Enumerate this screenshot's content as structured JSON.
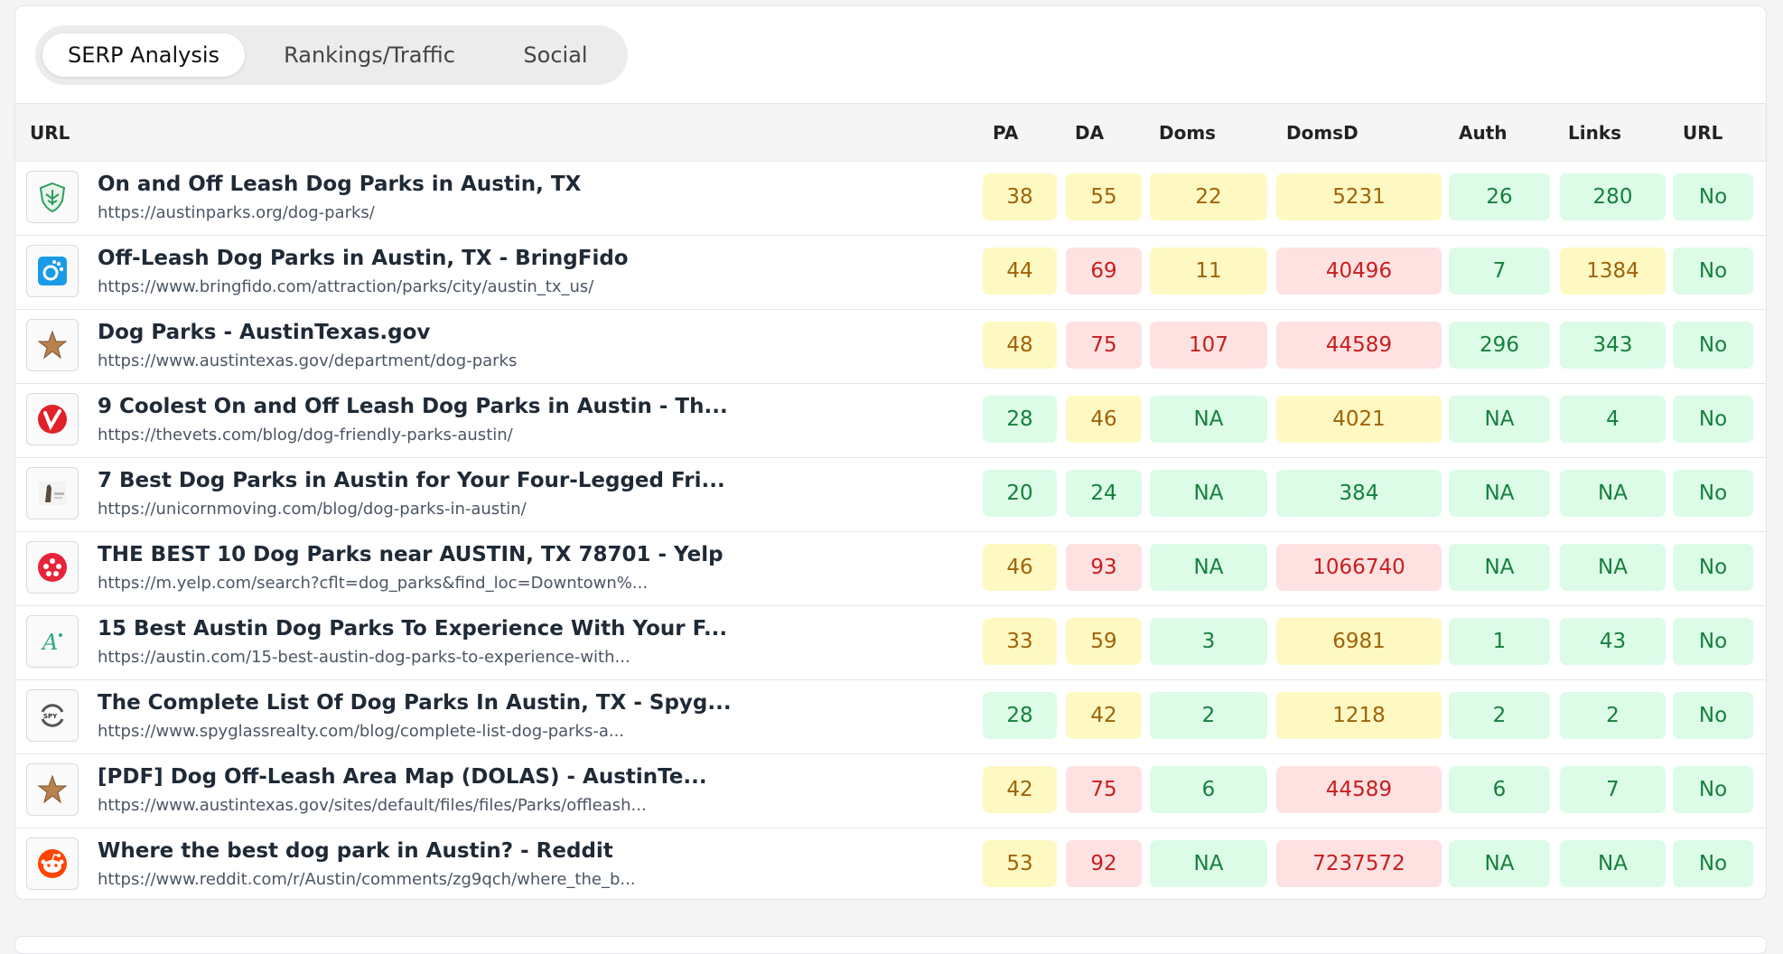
{
  "tabs": [
    {
      "label": "SERP Analysis",
      "active": true
    },
    {
      "label": "Rankings/Traffic",
      "active": false
    },
    {
      "label": "Social",
      "active": false
    }
  ],
  "columns": {
    "url": "URL",
    "pa": "PA",
    "da": "DA",
    "doms": "Doms",
    "domsd": "DomsD",
    "auth": "Auth",
    "links": "Links",
    "url2": "URL"
  },
  "colors": {
    "green_bg": "#dcfce7",
    "green_fg": "#15803d",
    "yellow_bg": "#fef9c3",
    "yellow_fg": "#a16207",
    "red_bg": "#fee2e2",
    "red_fg": "#c81e1e"
  },
  "rows": [
    {
      "icon": "austinparks-logo-icon",
      "title": "On and Off Leash Dog Parks in Austin, TX",
      "url": "https://austinparks.org/dog-parks/",
      "pa": {
        "v": "38",
        "c": "yellow"
      },
      "da": {
        "v": "55",
        "c": "yellow"
      },
      "doms": {
        "v": "22",
        "c": "yellow"
      },
      "domsd": {
        "v": "5231",
        "c": "yellow"
      },
      "auth": {
        "v": "26",
        "c": "green"
      },
      "links": {
        "v": "280",
        "c": "green"
      },
      "url2": {
        "v": "No",
        "c": "green"
      }
    },
    {
      "icon": "bringfido-logo-icon",
      "title": "Off-Leash Dog Parks in Austin, TX - BringFido",
      "url": "https://www.bringfido.com/attraction/parks/city/austin_tx_us/",
      "pa": {
        "v": "44",
        "c": "yellow"
      },
      "da": {
        "v": "69",
        "c": "red"
      },
      "doms": {
        "v": "11",
        "c": "yellow"
      },
      "domsd": {
        "v": "40496",
        "c": "red"
      },
      "auth": {
        "v": "7",
        "c": "green"
      },
      "links": {
        "v": "1384",
        "c": "yellow"
      },
      "url2": {
        "v": "No",
        "c": "green"
      }
    },
    {
      "icon": "austintexas-star-icon",
      "title": "Dog Parks - AustinTexas.gov",
      "url": "https://www.austintexas.gov/department/dog-parks",
      "pa": {
        "v": "48",
        "c": "yellow"
      },
      "da": {
        "v": "75",
        "c": "red"
      },
      "doms": {
        "v": "107",
        "c": "red"
      },
      "domsd": {
        "v": "44589",
        "c": "red"
      },
      "auth": {
        "v": "296",
        "c": "green"
      },
      "links": {
        "v": "343",
        "c": "green"
      },
      "url2": {
        "v": "No",
        "c": "green"
      }
    },
    {
      "icon": "thevets-logo-icon",
      "title": "9 Coolest On and Off Leash Dog Parks in Austin - Th...",
      "url": "https://thevets.com/blog/dog-friendly-parks-austin/",
      "pa": {
        "v": "28",
        "c": "green"
      },
      "da": {
        "v": "46",
        "c": "yellow"
      },
      "doms": {
        "v": "NA",
        "c": "green"
      },
      "domsd": {
        "v": "4021",
        "c": "yellow"
      },
      "auth": {
        "v": "NA",
        "c": "green"
      },
      "links": {
        "v": "4",
        "c": "green"
      },
      "url2": {
        "v": "No",
        "c": "green"
      }
    },
    {
      "icon": "unicornmoving-logo-icon",
      "title": "7 Best Dog Parks in Austin for Your Four-Legged Fri...",
      "url": "https://unicornmoving.com/blog/dog-parks-in-austin/",
      "pa": {
        "v": "20",
        "c": "green"
      },
      "da": {
        "v": "24",
        "c": "green"
      },
      "doms": {
        "v": "NA",
        "c": "green"
      },
      "domsd": {
        "v": "384",
        "c": "green"
      },
      "auth": {
        "v": "NA",
        "c": "green"
      },
      "links": {
        "v": "NA",
        "c": "green"
      },
      "url2": {
        "v": "No",
        "c": "green"
      }
    },
    {
      "icon": "yelp-logo-icon",
      "title": "THE BEST 10 Dog Parks near AUSTIN, TX 78701 - Yelp",
      "url": "https://m.yelp.com/search?cflt=dog_parks&find_loc=Downtown%...",
      "pa": {
        "v": "46",
        "c": "yellow"
      },
      "da": {
        "v": "93",
        "c": "red"
      },
      "doms": {
        "v": "NA",
        "c": "green"
      },
      "domsd": {
        "v": "1066740",
        "c": "red"
      },
      "auth": {
        "v": "NA",
        "c": "green"
      },
      "links": {
        "v": "NA",
        "c": "green"
      },
      "url2": {
        "v": "No",
        "c": "green"
      }
    },
    {
      "icon": "austin-com-logo-icon",
      "title": "15 Best Austin Dog Parks To Experience With Your F...",
      "url": "https://austin.com/15-best-austin-dog-parks-to-experience-with...",
      "pa": {
        "v": "33",
        "c": "yellow"
      },
      "da": {
        "v": "59",
        "c": "yellow"
      },
      "doms": {
        "v": "3",
        "c": "green"
      },
      "domsd": {
        "v": "6981",
        "c": "yellow"
      },
      "auth": {
        "v": "1",
        "c": "green"
      },
      "links": {
        "v": "43",
        "c": "green"
      },
      "url2": {
        "v": "No",
        "c": "green"
      }
    },
    {
      "icon": "spyglass-logo-icon",
      "title": "The Complete List Of Dog Parks In Austin, TX - Spyg...",
      "url": "https://www.spyglassrealty.com/blog/complete-list-dog-parks-a...",
      "pa": {
        "v": "28",
        "c": "green"
      },
      "da": {
        "v": "42",
        "c": "yellow"
      },
      "doms": {
        "v": "2",
        "c": "green"
      },
      "domsd": {
        "v": "1218",
        "c": "yellow"
      },
      "auth": {
        "v": "2",
        "c": "green"
      },
      "links": {
        "v": "2",
        "c": "green"
      },
      "url2": {
        "v": "No",
        "c": "green"
      }
    },
    {
      "icon": "austintexas-star-icon",
      "title": "[PDF] Dog Off-Leash Area Map (DOLAS) - AustinTe...",
      "url": "https://www.austintexas.gov/sites/default/files/files/Parks/offleash...",
      "pa": {
        "v": "42",
        "c": "yellow"
      },
      "da": {
        "v": "75",
        "c": "red"
      },
      "doms": {
        "v": "6",
        "c": "green"
      },
      "domsd": {
        "v": "44589",
        "c": "red"
      },
      "auth": {
        "v": "6",
        "c": "green"
      },
      "links": {
        "v": "7",
        "c": "green"
      },
      "url2": {
        "v": "No",
        "c": "green"
      }
    },
    {
      "icon": "reddit-logo-icon",
      "title": "Where the best dog park in Austin? - Reddit",
      "url": "https://www.reddit.com/r/Austin/comments/zg9qch/where_the_b...",
      "pa": {
        "v": "53",
        "c": "yellow"
      },
      "da": {
        "v": "92",
        "c": "red"
      },
      "doms": {
        "v": "NA",
        "c": "green"
      },
      "domsd": {
        "v": "7237572",
        "c": "red"
      },
      "auth": {
        "v": "NA",
        "c": "green"
      },
      "links": {
        "v": "NA",
        "c": "green"
      },
      "url2": {
        "v": "No",
        "c": "green"
      }
    }
  ]
}
